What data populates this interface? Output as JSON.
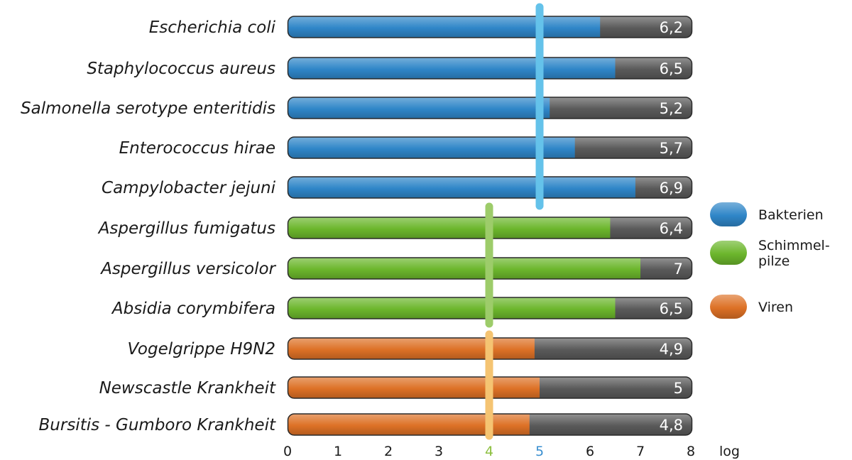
{
  "chart_data": {
    "type": "bar",
    "orientation": "horizontal",
    "categories": [
      "Escherichia coli",
      "Staphylococcus aureus",
      "Salmonella serotype enteritidis",
      "Enterococcus hirae",
      "Campylobacter jejuni",
      "Aspergillus fumigatus",
      "Aspergillus versicolor",
      "Absidia corymbifera",
      "Vogelgrippe H9N2",
      "Newscastle Krankheit",
      "Bursitis - Gumboro Krankheit"
    ],
    "values": [
      6.2,
      6.5,
      5.2,
      5.7,
      6.9,
      6.4,
      7,
      6.5,
      4.9,
      5,
      4.8
    ],
    "value_labels": [
      "6,2",
      "6,5",
      "5,2",
      "5,7",
      "6,9",
      "6,4",
      "7",
      "6,5",
      "4,9",
      "5",
      "4,8"
    ],
    "groups": [
      "Bakterien",
      "Bakterien",
      "Bakterien",
      "Bakterien",
      "Bakterien",
      "Schimmelpilze",
      "Schimmelpilze",
      "Schimmelpilze",
      "Viren",
      "Viren",
      "Viren"
    ],
    "xlim": [
      0,
      8
    ],
    "xticks": [
      "0",
      "1",
      "2",
      "3",
      "4",
      "5",
      "6",
      "7",
      "8"
    ],
    "xunit": "log",
    "thresholds": [
      {
        "group": "Bakterien",
        "value": 5
      },
      {
        "group": "Schimmelpilze",
        "value": 4
      },
      {
        "group": "Viren",
        "value": 4
      }
    ],
    "legend": {
      "position": "right",
      "entries": [
        {
          "lines": [
            "Bakterien"
          ],
          "group": "Bakterien"
        },
        {
          "lines": [
            "Schimmel-",
            "pilze"
          ],
          "group": "Schimmelpilze"
        },
        {
          "lines": [
            "Viren"
          ],
          "group": "Viren"
        }
      ]
    },
    "colors": {
      "Bakterien": "#2f86c8",
      "Schimmelpilze": "#6cb62c",
      "Viren": "#dd7126",
      "remainder": "#5a5a5a",
      "threshold_Bakterien": "#64c2ea",
      "threshold_Schimmelpilze": "#9dcc6a",
      "threshold_Viren": "#f5c472",
      "tick_highlight_4": "#8cbf3f",
      "tick_highlight_5": "#3a8fd0"
    },
    "grid": false
  }
}
